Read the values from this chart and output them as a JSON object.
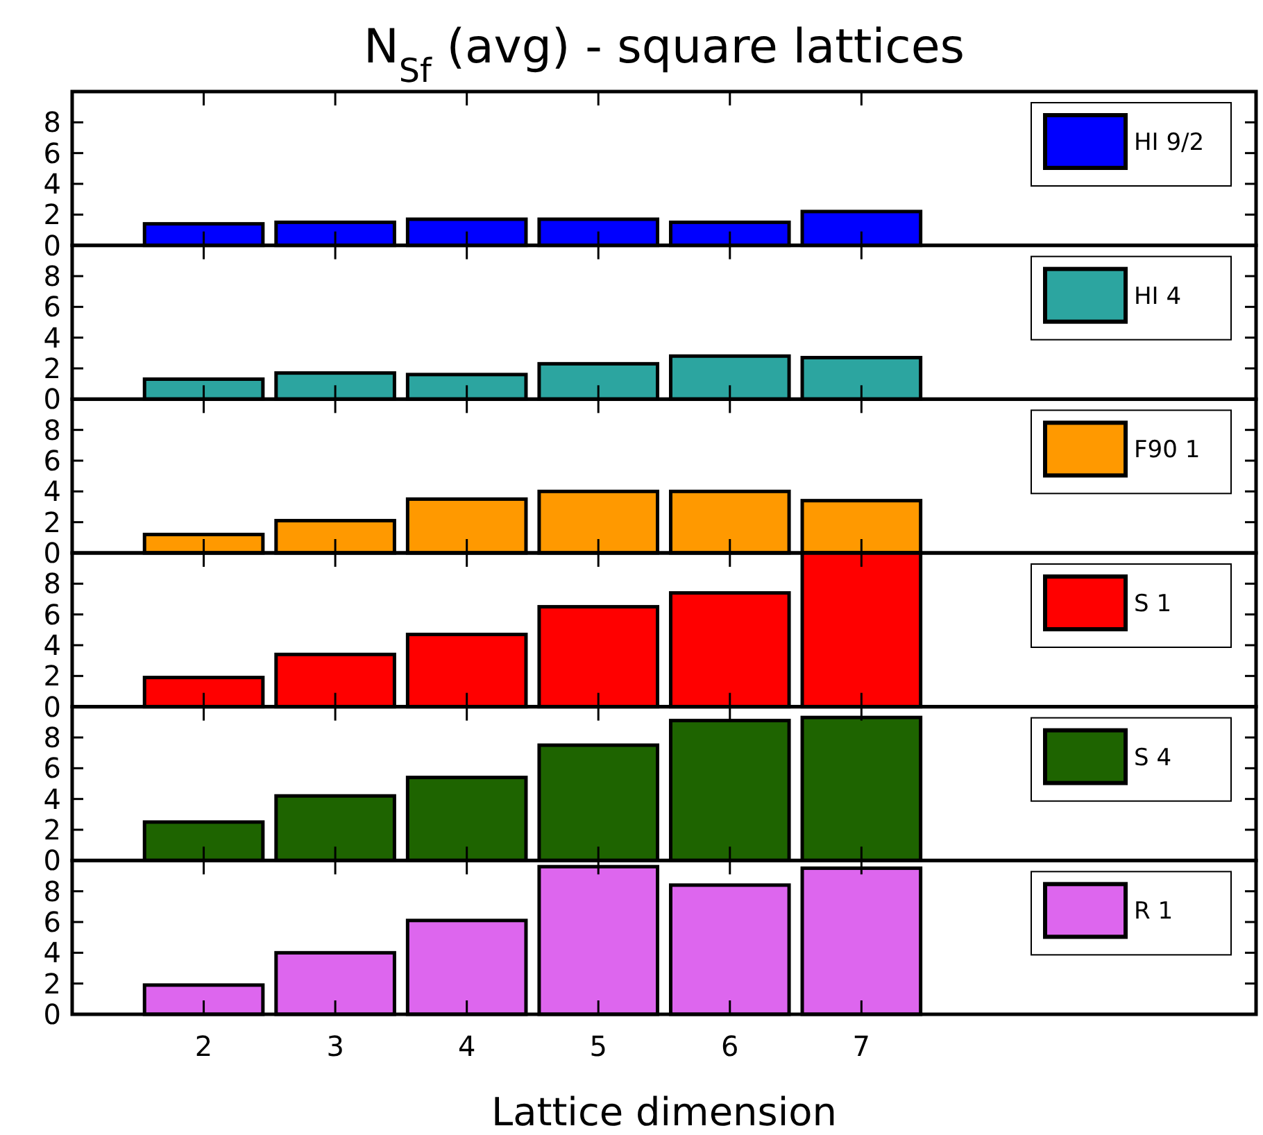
{
  "chart_data": [
    {
      "type": "bar",
      "title": "N$_{Sf}$ (avg) - square lattices",
      "x": [
        2,
        3,
        4,
        5,
        6,
        7
      ],
      "xlim": [
        1,
        10
      ],
      "xticks": [
        2,
        3,
        4,
        5,
        6,
        7
      ],
      "ylim": [
        0,
        10
      ],
      "yticks": [
        0,
        2,
        4,
        6,
        8
      ],
      "tick_labels": "y",
      "legend": "top right",
      "series": [
        {
          "name": "HI 9/2",
          "color": "#0000ff",
          "values": [
            1.4,
            1.5,
            1.7,
            1.7,
            1.5,
            2.2
          ]
        }
      ]
    },
    {
      "type": "bar",
      "x": [
        2,
        3,
        4,
        5,
        6,
        7
      ],
      "xlim": [
        1,
        10
      ],
      "xticks": [
        2,
        3,
        4,
        5,
        6,
        7
      ],
      "ylim": [
        0,
        10
      ],
      "yticks": [
        0,
        2,
        4,
        6,
        8
      ],
      "tick_labels": "y",
      "legend": "top right",
      "series": [
        {
          "name": "HI 4",
          "color": "#2ca5a0",
          "values": [
            1.3,
            1.7,
            1.6,
            2.3,
            2.8,
            2.7
          ]
        }
      ]
    },
    {
      "type": "bar",
      "x": [
        2,
        3,
        4,
        5,
        6,
        7
      ],
      "xlim": [
        1,
        10
      ],
      "xticks": [
        2,
        3,
        4,
        5,
        6,
        7
      ],
      "ylim": [
        0,
        10
      ],
      "yticks": [
        0,
        2,
        4,
        6,
        8
      ],
      "tick_labels": "y",
      "legend": "top right",
      "series": [
        {
          "name": "F90 1",
          "color": "#ff9900",
          "values": [
            1.2,
            2.1,
            3.5,
            4.0,
            4.0,
            3.4
          ]
        }
      ]
    },
    {
      "type": "bar",
      "x": [
        2,
        3,
        4,
        5,
        6,
        7
      ],
      "xlim": [
        1,
        10
      ],
      "xticks": [
        2,
        3,
        4,
        5,
        6,
        7
      ],
      "ylim": [
        0,
        10
      ],
      "yticks": [
        0,
        2,
        4,
        6,
        8
      ],
      "tick_labels": "y",
      "legend": "top right",
      "series": [
        {
          "name": "S 1",
          "color": "#ff0000",
          "values": [
            1.9,
            3.4,
            4.7,
            6.5,
            7.4,
            10
          ]
        }
      ]
    },
    {
      "type": "bar",
      "x": [
        2,
        3,
        4,
        5,
        6,
        7
      ],
      "xlim": [
        1,
        10
      ],
      "xticks": [
        2,
        3,
        4,
        5,
        6,
        7
      ],
      "ylim": [
        0,
        10
      ],
      "yticks": [
        0,
        2,
        4,
        6,
        8
      ],
      "tick_labels": "y",
      "legend": "top right",
      "series": [
        {
          "name": "S 4",
          "color": "#1e6400",
          "values": [
            2.5,
            4.2,
            5.4,
            7.5,
            9.1,
            9.3
          ]
        }
      ]
    },
    {
      "type": "bar",
      "xlabel": "Lattice dimension",
      "x": [
        2,
        3,
        4,
        5,
        6,
        7
      ],
      "xlim": [
        1,
        10
      ],
      "xticks": [
        2,
        3,
        4,
        5,
        6,
        7
      ],
      "ylim": [
        0,
        10
      ],
      "yticks": [
        0,
        2,
        4,
        6,
        8
      ],
      "legend": "top right",
      "series": [
        {
          "name": "R 1",
          "color": "#dd66ee",
          "values": [
            1.9,
            4.0,
            6.1,
            9.6,
            8.4,
            9.5
          ]
        }
      ]
    }
  ]
}
